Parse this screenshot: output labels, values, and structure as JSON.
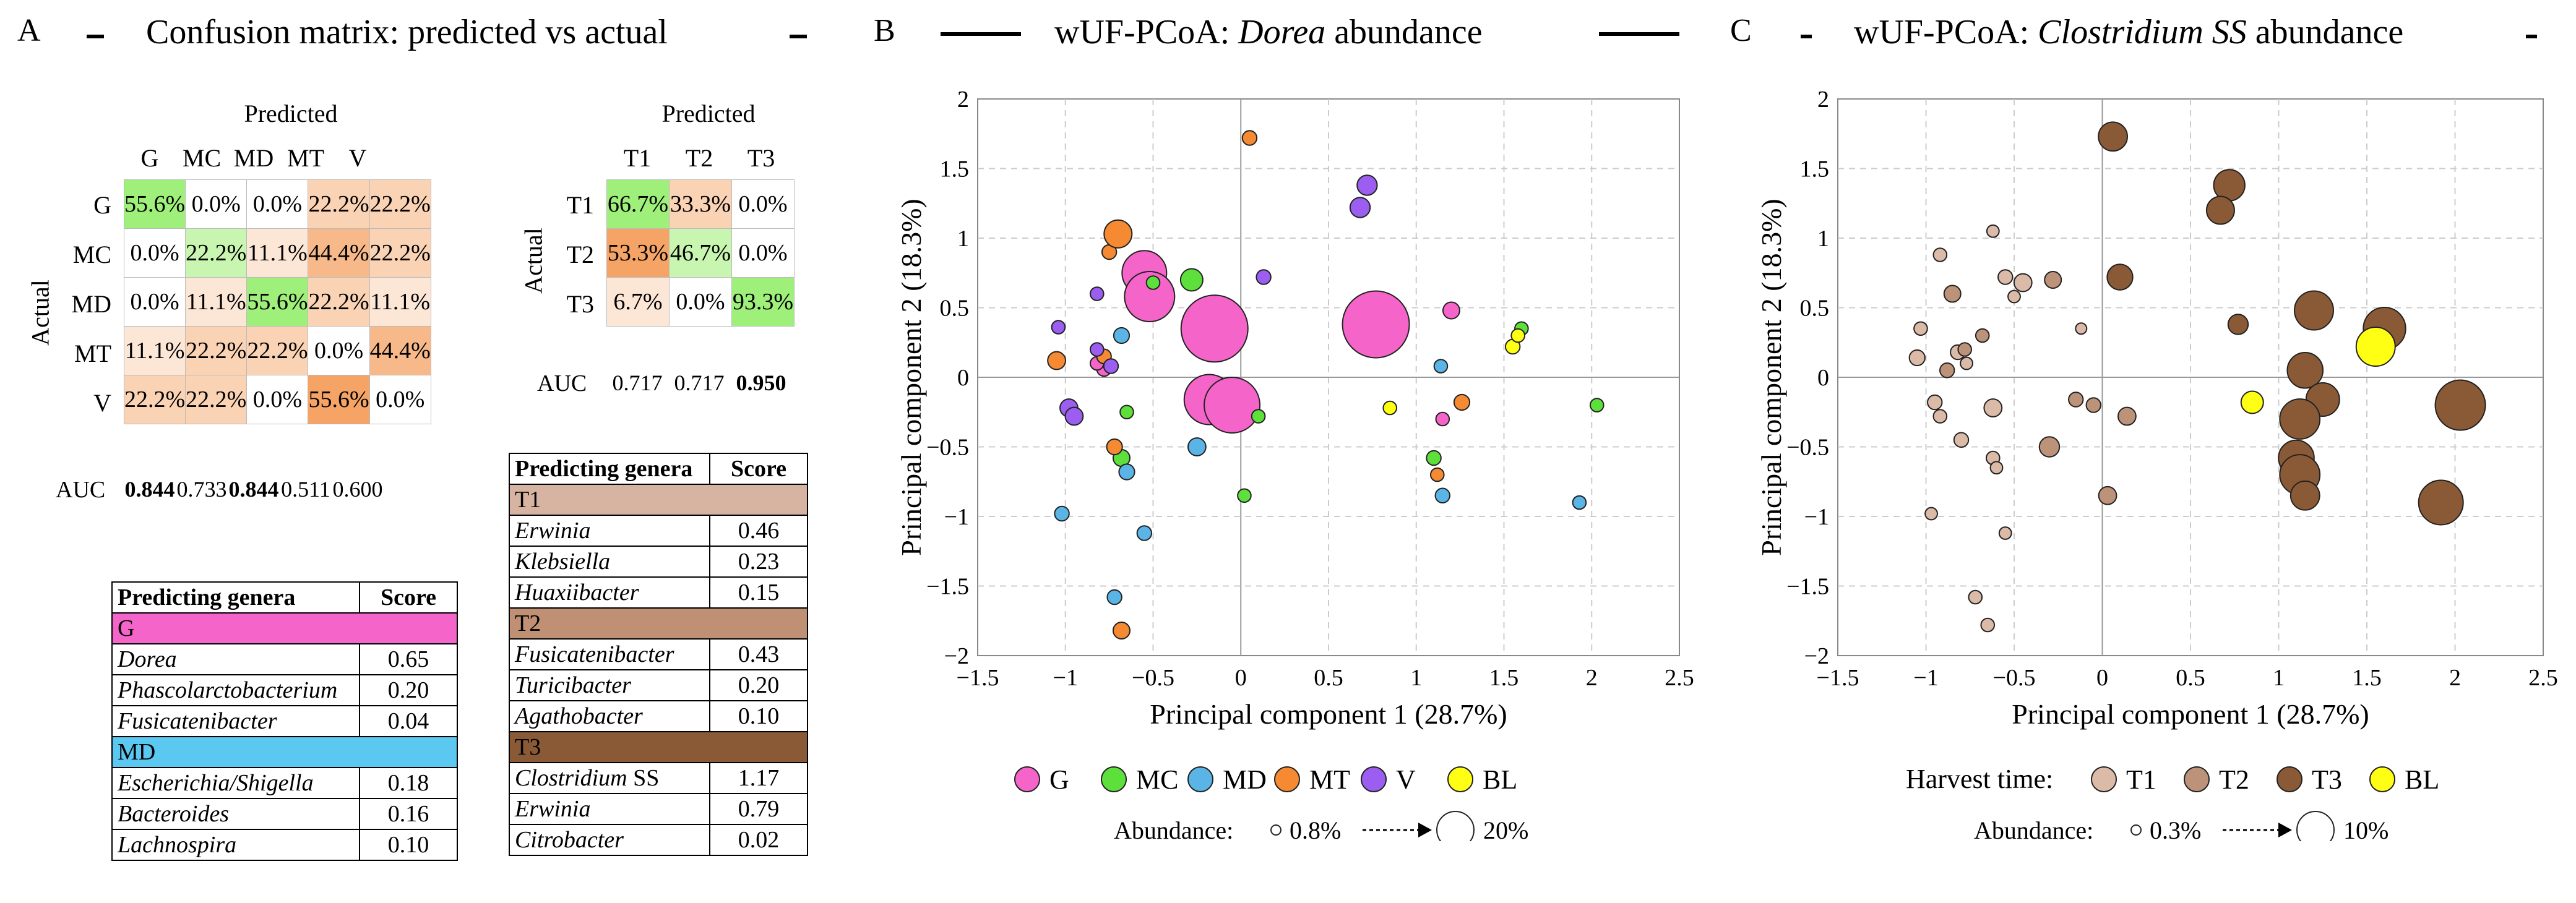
{
  "panelA": {
    "letter": "A",
    "title": "Confusion matrix: predicted vs actual",
    "cm1": {
      "predicted_label": "Predicted",
      "actual_label": "Actual",
      "cols": [
        "G",
        "MC",
        "MD",
        "MT",
        "V"
      ],
      "rows": [
        "G",
        "MC",
        "MD",
        "MT",
        "V"
      ],
      "cells": [
        [
          "55.6%",
          "0.0%",
          "0.0%",
          "22.2%",
          "22.2%"
        ],
        [
          "0.0%",
          "22.2%",
          "11.1%",
          "44.4%",
          "22.2%"
        ],
        [
          "0.0%",
          "11.1%",
          "55.6%",
          "22.2%",
          "11.1%"
        ],
        [
          "11.1%",
          "22.2%",
          "22.2%",
          "0.0%",
          "44.4%"
        ],
        [
          "22.2%",
          "22.2%",
          "0.0%",
          "55.6%",
          "0.0%"
        ]
      ],
      "auc_label": "AUC",
      "auc": [
        "0.844",
        "0.733",
        "0.844",
        "0.511",
        "0.600"
      ]
    },
    "cm2": {
      "predicted_label": "Predicted",
      "actual_label": "Actual",
      "cols": [
        "T1",
        "T2",
        "T3"
      ],
      "rows": [
        "T1",
        "T2",
        "T3"
      ],
      "cells": [
        [
          "66.7%",
          "33.3%",
          "0.0%"
        ],
        [
          "53.3%",
          "46.7%",
          "0.0%"
        ],
        [
          "6.7%",
          "0.0%",
          "93.3%"
        ]
      ],
      "auc_label": "AUC",
      "auc": [
        "0.717",
        "0.717",
        "0.950"
      ]
    },
    "table1": {
      "header": [
        "Predicting genera",
        "Score"
      ],
      "groups": [
        {
          "name": "G",
          "color": "#f564c8",
          "rows": [
            [
              "Dorea",
              "0.65"
            ],
            [
              "Phascolarctobacterium",
              "0.20"
            ],
            [
              "Fusicatenibacter",
              "0.04"
            ]
          ]
        },
        {
          "name": "MD",
          "color": "#5ac8f0",
          "rows": [
            [
              "Escherichia/Shigella",
              "0.18"
            ],
            [
              "Bacteroides",
              "0.16"
            ],
            [
              "Lachnospira",
              "0.10"
            ]
          ]
        }
      ]
    },
    "table2": {
      "header": [
        "Predicting genera",
        "Score"
      ],
      "groups": [
        {
          "name": "T1",
          "color": "#d7b4a2",
          "rows": [
            [
              "Erwinia",
              "0.46"
            ],
            [
              "Klebsiella",
              "0.23"
            ],
            [
              "Huaxiibacter",
              "0.15"
            ]
          ]
        },
        {
          "name": "T2",
          "color": "#c09074",
          "rows": [
            [
              "Fusicatenibacter",
              "0.43"
            ],
            [
              "Turicibacter",
              "0.20"
            ],
            [
              "Agathobacter",
              "0.10"
            ]
          ]
        },
        {
          "name": "T3",
          "color": "#8a5a36",
          "rows": [
            [
              "Clostridium SS",
              "1.17"
            ],
            [
              "Erwinia",
              "0.79"
            ],
            [
              "Citrobacter",
              "0.02"
            ]
          ]
        }
      ]
    }
  },
  "panelB": {
    "letter": "B",
    "title_prefix": "wUF-PCoA: ",
    "title_italic": "Dorea",
    "title_suffix": " abundance",
    "legend_items": [
      {
        "label": "G",
        "color": "#f564c8"
      },
      {
        "label": "MC",
        "color": "#5ee03c"
      },
      {
        "label": "MD",
        "color": "#5ab4e6"
      },
      {
        "label": "MT",
        "color": "#f58a32"
      },
      {
        "label": "V",
        "color": "#9b5ef0"
      },
      {
        "label": "BL",
        "color": "#ffff14"
      }
    ],
    "abundance_label": "Abundance:",
    "abundance_min": "0.8%",
    "abundance_max": "20%"
  },
  "panelC": {
    "letter": "C",
    "title_prefix": "wUF-PCoA: ",
    "title_italic": "Clostridium SS",
    "title_suffix": " abundance",
    "legend_title": "Harvest time:",
    "legend_items": [
      {
        "label": "T1",
        "color": "#dcbaa8"
      },
      {
        "label": "T2",
        "color": "#bc9278"
      },
      {
        "label": "T3",
        "color": "#8a5a36"
      },
      {
        "label": "BL",
        "color": "#ffff14"
      }
    ],
    "abundance_label": "Abundance:",
    "abundance_min": "0.3%",
    "abundance_max": "10%"
  },
  "chart_data": [
    {
      "type": "scatter",
      "title": "wUF-PCoA: Dorea abundance",
      "xlabel": "Principal component 1 (28.7%)",
      "ylabel": "Principal component 2 (18.3%)",
      "xlim": [
        -1.5,
        2.5
      ],
      "ylim": [
        -2,
        2
      ],
      "xticks": [
        "−1.5",
        "−1",
        "−0.5",
        "0",
        "0.5",
        "1",
        "1.5",
        "2",
        "2.5"
      ],
      "yticks": [
        "2",
        "1.5",
        "1",
        "0.5",
        "0",
        "−0.5",
        "−1",
        "−1.5",
        "−2"
      ],
      "grid": true,
      "series": [
        {
          "name": "G",
          "color": "#f564c8",
          "points": [
            [
              -0.55,
              0.75,
              4
            ],
            [
              -0.52,
              0.58,
              4.5
            ],
            [
              -0.15,
              0.35,
              6
            ],
            [
              0.77,
              0.38,
              6
            ],
            [
              -0.18,
              -0.16,
              4.5
            ],
            [
              -0.05,
              -0.2,
              5
            ],
            [
              1.2,
              0.48,
              1.5
            ],
            [
              1.15,
              -0.3,
              1.2
            ],
            [
              -0.78,
              0.06,
              1.3
            ],
            [
              -0.82,
              0.1,
              1.2
            ]
          ]
        },
        {
          "name": "MC",
          "color": "#5ee03c",
          "points": [
            [
              -0.5,
              0.68,
              1.2
            ],
            [
              -0.28,
              0.7,
              2
            ],
            [
              -0.65,
              -0.25,
              1.2
            ],
            [
              0.1,
              -0.28,
              1.2
            ],
            [
              -0.68,
              -0.58,
              1.5
            ],
            [
              0.02,
              -0.85,
              1.2
            ],
            [
              1.1,
              -0.58,
              1.3
            ],
            [
              1.6,
              0.35,
              1.2
            ],
            [
              2.03,
              -0.2,
              1.2
            ]
          ]
        },
        {
          "name": "MD",
          "color": "#5ab4e6",
          "points": [
            [
              -0.68,
              0.3,
              1.4
            ],
            [
              -0.65,
              -0.68,
              1.4
            ],
            [
              -1.02,
              -0.98,
              1.3
            ],
            [
              -0.55,
              -1.12,
              1.3
            ],
            [
              -0.72,
              -1.58,
              1.3
            ],
            [
              -0.25,
              -0.5,
              1.6
            ],
            [
              1.14,
              0.08,
              1.2
            ],
            [
              1.15,
              -0.85,
              1.3
            ],
            [
              1.93,
              -0.9,
              1.2
            ]
          ]
        },
        {
          "name": "MT",
          "color": "#f58a32",
          "points": [
            [
              0.05,
              1.72,
              1.3
            ],
            [
              -0.75,
              0.9,
              1.3
            ],
            [
              -0.7,
              1.03,
              2.5
            ],
            [
              -1.05,
              0.12,
              1.6
            ],
            [
              -0.78,
              0.15,
              1.3
            ],
            [
              -0.72,
              -0.5,
              1.4
            ],
            [
              1.26,
              -0.18,
              1.4
            ],
            [
              1.12,
              -0.7,
              1.2
            ],
            [
              -0.68,
              -1.82,
              1.5
            ]
          ]
        },
        {
          "name": "V",
          "color": "#9b5ef0",
          "points": [
            [
              0.72,
              1.38,
              1.8
            ],
            [
              0.68,
              1.22,
              1.8
            ],
            [
              0.13,
              0.72,
              1.3
            ],
            [
              -1.04,
              0.36,
              1.2
            ],
            [
              -0.82,
              0.2,
              1.2
            ],
            [
              -0.82,
              0.6,
              1.2
            ],
            [
              -0.98,
              -0.22,
              1.6
            ],
            [
              -0.95,
              -0.28,
              1.6
            ],
            [
              -0.74,
              0.08,
              1.3
            ]
          ]
        },
        {
          "name": "BL",
          "color": "#ffff14",
          "points": [
            [
              0.85,
              -0.22,
              1.2
            ],
            [
              1.55,
              0.22,
              1.3
            ],
            [
              1.58,
              0.3,
              1.2
            ]
          ]
        }
      ]
    },
    {
      "type": "scatter",
      "title": "wUF-PCoA: Clostridium SS abundance",
      "xlabel": "Principal component 1 (28.7%)",
      "ylabel": "Principal component 2 (18.3%)",
      "xlim": [
        -1.5,
        2.5
      ],
      "ylim": [
        -2,
        2
      ],
      "xticks": [
        "−1.5",
        "−1",
        "−0.5",
        "0",
        "0.5",
        "1",
        "1.5",
        "2",
        "2.5"
      ],
      "yticks": [
        "2",
        "1.5",
        "1",
        "0.5",
        "0",
        "−0.5",
        "−1",
        "−1.5",
        "−2"
      ],
      "grid": true,
      "series": [
        {
          "name": "T1",
          "color": "#dcbaa8",
          "points": [
            [
              -0.92,
              0.88,
              1.2
            ],
            [
              -0.62,
              1.05,
              1.1
            ],
            [
              -0.55,
              0.72,
              1.3
            ],
            [
              -0.5,
              0.58,
              1.1
            ],
            [
              -0.45,
              0.68,
              1.6
            ],
            [
              -1.03,
              0.35,
              1.2
            ],
            [
              -0.82,
              0.18,
              1.3
            ],
            [
              -0.77,
              0.1,
              1.1
            ],
            [
              -1.05,
              0.14,
              1.4
            ],
            [
              -0.95,
              -0.18,
              1.3
            ],
            [
              -0.92,
              -0.28,
              1.2
            ],
            [
              -0.62,
              -0.22,
              1.6
            ],
            [
              -0.62,
              -0.58,
              1.2
            ],
            [
              -0.6,
              -0.65,
              1.1
            ],
            [
              -0.8,
              -0.45,
              1.3
            ],
            [
              -0.97,
              -0.98,
              1.1
            ],
            [
              -0.72,
              -1.58,
              1.2
            ],
            [
              -0.65,
              -1.78,
              1.2
            ],
            [
              -0.12,
              0.35,
              1.0
            ],
            [
              -0.55,
              -1.12,
              1.1
            ]
          ]
        },
        {
          "name": "T2",
          "color": "#bc9278",
          "points": [
            [
              -0.28,
              0.7,
              1.5
            ],
            [
              -0.85,
              0.6,
              1.5
            ],
            [
              -0.88,
              0.05,
              1.3
            ],
            [
              -0.78,
              0.2,
              1.2
            ],
            [
              -0.68,
              0.3,
              1.2
            ],
            [
              -0.3,
              -0.5,
              1.8
            ],
            [
              -0.15,
              -0.16,
              1.3
            ],
            [
              -0.05,
              -0.2,
              1.3
            ],
            [
              0.14,
              -0.28,
              1.6
            ],
            [
              0.03,
              -0.85,
              1.6
            ]
          ]
        },
        {
          "name": "T3",
          "color": "#8a5a36",
          "points": [
            [
              0.06,
              1.73,
              2.6
            ],
            [
              0.72,
              1.38,
              2.8
            ],
            [
              0.67,
              1.2,
              2.5
            ],
            [
              0.1,
              0.72,
              2.3
            ],
            [
              0.77,
              0.38,
              1.8
            ],
            [
              1.2,
              0.48,
              3.5
            ],
            [
              1.6,
              0.35,
              3.8
            ],
            [
              1.15,
              0.05,
              3.2
            ],
            [
              1.25,
              -0.16,
              3.0
            ],
            [
              1.12,
              -0.3,
              3.6
            ],
            [
              2.03,
              -0.2,
              4.5
            ],
            [
              1.1,
              -0.58,
              3.2
            ],
            [
              1.12,
              -0.7,
              3.6
            ],
            [
              1.15,
              -0.85,
              2.6
            ],
            [
              1.92,
              -0.9,
              4.0
            ]
          ]
        },
        {
          "name": "BL",
          "color": "#ffff14",
          "points": [
            [
              0.85,
              -0.18,
              2.0
            ],
            [
              1.55,
              0.22,
              3.5
            ]
          ]
        }
      ]
    }
  ]
}
